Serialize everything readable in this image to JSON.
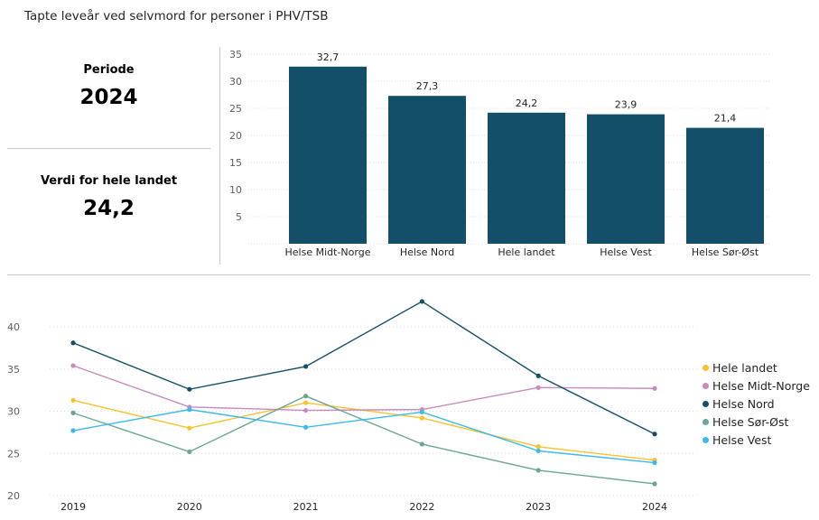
{
  "title": "Tapte leveår ved selvmord for personer i PHV/TSB",
  "cards": {
    "period_label": "Periode",
    "period_value": "2024",
    "national_label": "Verdi for hele landet",
    "national_value": "24,2"
  },
  "colors": {
    "bar": "#134f69",
    "Hele landet": "#f9c22e",
    "Helse Midt-Norge": "#c98bbd",
    "Helse Nord": "#134f69",
    "Helse Sør-Øst": "#6aa595",
    "Helse Vest": "#3bb9ef"
  },
  "chart_data": [
    {
      "type": "bar",
      "categories": [
        "Helse Midt-Norge",
        "Helse Nord",
        "Hele landet",
        "Helse Vest",
        "Helse Sør-Øst"
      ],
      "values": [
        32.7,
        27.3,
        24.2,
        23.9,
        21.4
      ],
      "data_labels": [
        "32,7",
        "27,3",
        "24,2",
        "23,9",
        "21,4"
      ],
      "ylim": [
        0,
        35
      ],
      "yticks": [
        5,
        10,
        15,
        20,
        25,
        30,
        35
      ],
      "grid": true
    },
    {
      "type": "line",
      "x": [
        "2019",
        "2020",
        "2021",
        "2022",
        "2023",
        "2024"
      ],
      "ylim": [
        20,
        45
      ],
      "yticks": [
        20,
        25,
        30,
        35,
        40
      ],
      "grid": true,
      "legend": "right",
      "series": [
        {
          "name": "Hele landet",
          "values": [
            31.3,
            28.0,
            31.0,
            29.2,
            25.8,
            24.2
          ]
        },
        {
          "name": "Helse Midt-Norge",
          "values": [
            35.4,
            30.5,
            30.1,
            30.2,
            32.8,
            32.7
          ]
        },
        {
          "name": "Helse Nord",
          "values": [
            38.1,
            32.6,
            35.3,
            43.0,
            34.2,
            27.3
          ]
        },
        {
          "name": "Helse Sør-Øst",
          "values": [
            29.8,
            25.2,
            31.8,
            26.1,
            23.0,
            21.4
          ]
        },
        {
          "name": "Helse Vest",
          "values": [
            27.7,
            30.2,
            28.1,
            29.9,
            25.3,
            23.9
          ]
        }
      ]
    }
  ]
}
